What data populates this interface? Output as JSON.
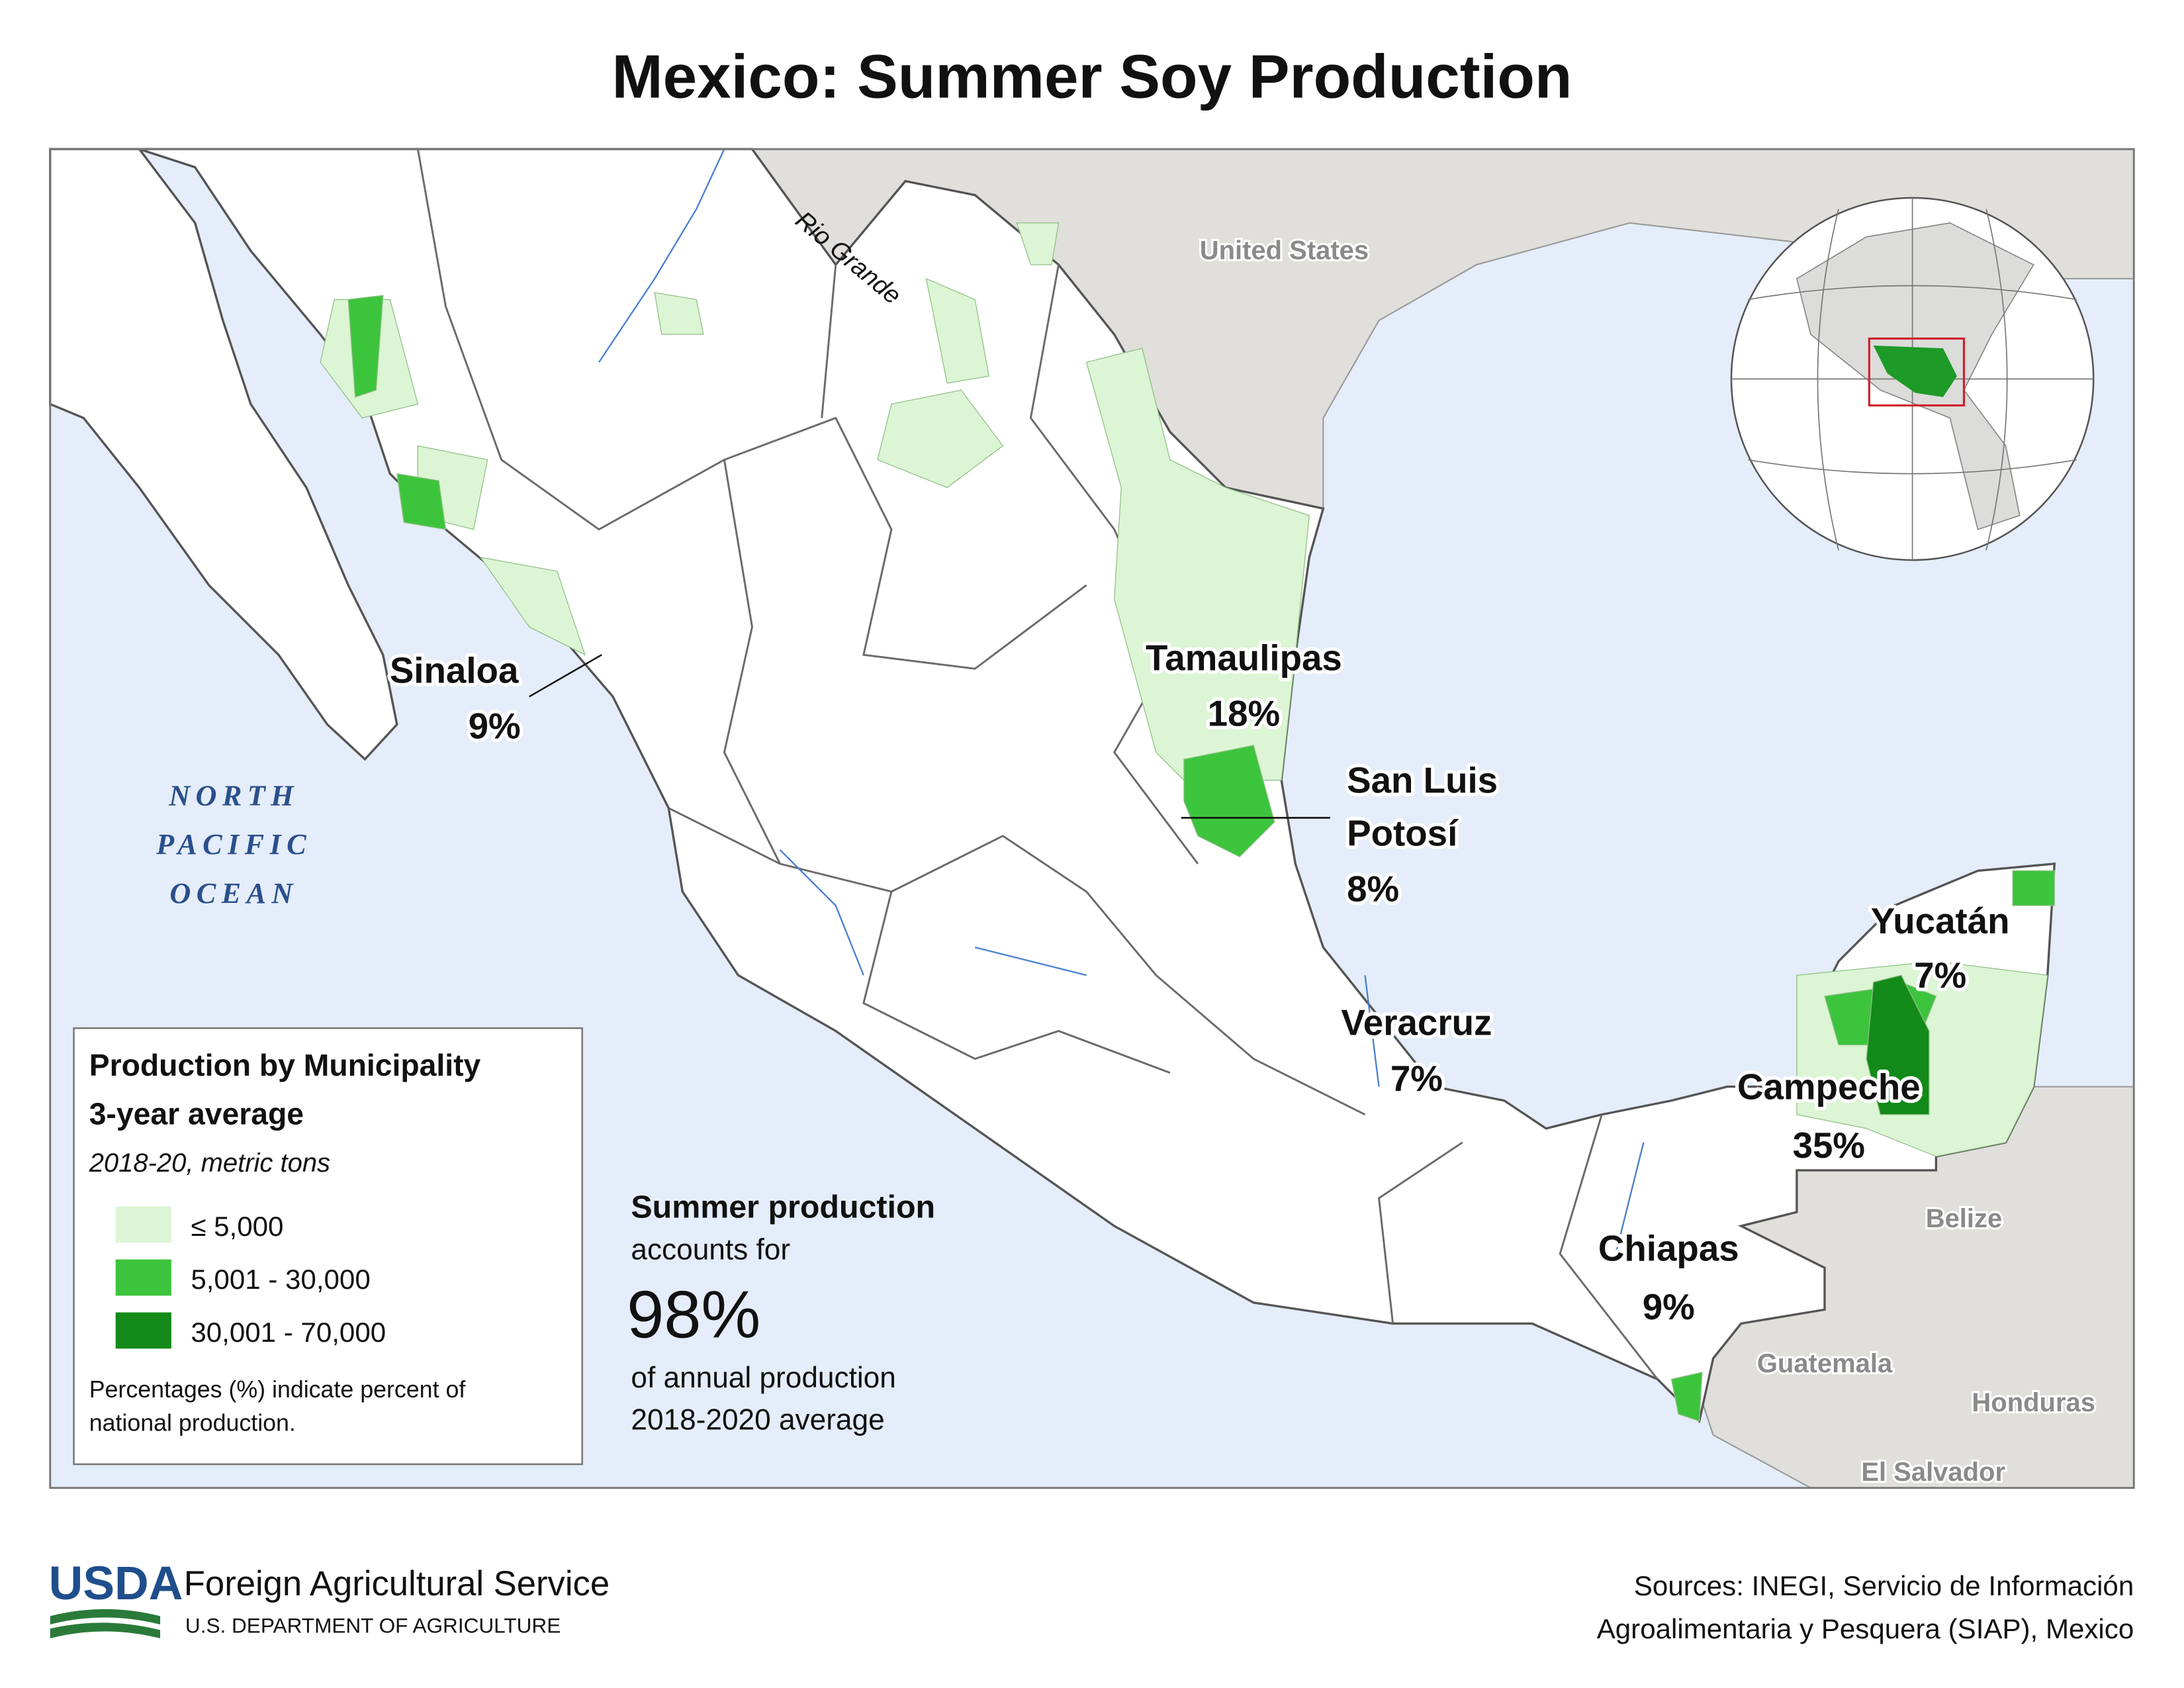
{
  "title": "Mexico: Summer Soy Production",
  "map": {
    "states": [
      {
        "name": [
          "Sinaloa"
        ],
        "share": "9%"
      },
      {
        "name": [
          "Tamaulipas"
        ],
        "share": "18%"
      },
      {
        "name": [
          "San Luis",
          "Potosí"
        ],
        "share": "8%"
      },
      {
        "name": [
          "Yucatán"
        ],
        "share": "7%"
      },
      {
        "name": [
          "Veracruz"
        ],
        "share": "7%"
      },
      {
        "name": [
          "Campeche"
        ],
        "share": "35%"
      },
      {
        "name": [
          "Chiapas"
        ],
        "share": "9%"
      }
    ],
    "ocean": [
      "NORTH",
      "PACIFIC",
      "OCEAN"
    ],
    "river": "Rio Grande",
    "countries": [
      "United States",
      "Belize",
      "Guatemala",
      "Honduras",
      "El Salvador"
    ]
  },
  "legend": {
    "title": [
      "Production by Municipality",
      "3-year average"
    ],
    "subtitle": "2018-20, metric tons",
    "classes": [
      {
        "label": "≤ 5,000",
        "color": "#dcf5d4"
      },
      {
        "label": "5,001 - 30,000",
        "color": "#3dc43d"
      },
      {
        "label": "30,001 - 70,000",
        "color": "#138a1a"
      }
    ],
    "note": [
      "Percentages (%) indicate percent of",
      "national production."
    ]
  },
  "callout": {
    "heading": "Summer production",
    "before": "accounts for",
    "value": "98%",
    "after": [
      "of annual production",
      "2018-2020 average"
    ]
  },
  "footer": {
    "agency": "USDA",
    "name": "Foreign Agricultural Service",
    "department": "U.S. DEPARTMENT OF AGRICULTURE",
    "sources": [
      "Sources: INEGI, Servicio de Información",
      "Agroalimentaria y Pesquera (SIAP), Mexico"
    ]
  }
}
